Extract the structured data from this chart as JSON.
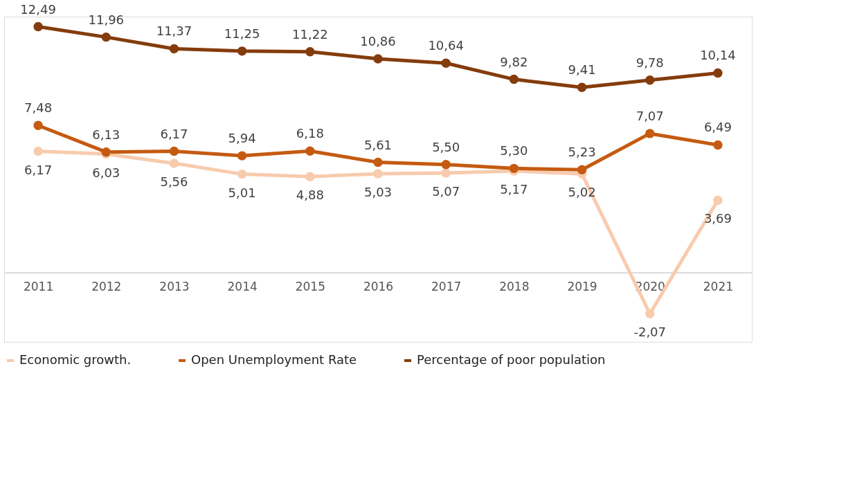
{
  "chart_data": {
    "type": "line",
    "categories": [
      "2011",
      "2012",
      "2013",
      "2014",
      "2015",
      "2016",
      "2017",
      "2018",
      "2019",
      "2020",
      "2021"
    ],
    "ylim": [
      -3.5,
      13
    ],
    "series": [
      {
        "name": "Economic growth.",
        "color": "#f8cbad",
        "values": [
          6.17,
          6.03,
          5.56,
          5.01,
          4.88,
          5.03,
          5.07,
          5.17,
          5.02,
          -2.07,
          3.69
        ],
        "value_labels": [
          "6,17",
          "6,03",
          "5,56",
          "5,01",
          "4,88",
          "5,03",
          "5,07",
          "5,17",
          "5,02",
          "-2,07",
          "3,69"
        ]
      },
      {
        "name": "Open Unemployment Rate",
        "color": "#c55a11",
        "values": [
          7.48,
          6.13,
          6.17,
          5.94,
          6.18,
          5.61,
          5.5,
          5.3,
          5.23,
          7.07,
          6.49
        ],
        "value_labels": [
          "7,48",
          "6,13",
          "6,17",
          "5,94",
          "6,18",
          "5,61",
          "5,50",
          "5,30",
          "5,23",
          "7,07",
          "6,49"
        ]
      },
      {
        "name": "Percentage of poor population",
        "color": "#843c0c",
        "values": [
          12.49,
          11.96,
          11.37,
          11.25,
          11.22,
          10.86,
          10.64,
          9.82,
          9.41,
          9.78,
          10.14
        ],
        "value_labels": [
          "12,49",
          "11,96",
          "11,37",
          "11,25",
          "11,22",
          "10,86",
          "10,64",
          "9,82",
          "9,41",
          "9,78",
          "10,14"
        ]
      }
    ],
    "marker": "circle",
    "line_style": "solid",
    "grid": false,
    "legend": "bottom",
    "relative": false
  }
}
